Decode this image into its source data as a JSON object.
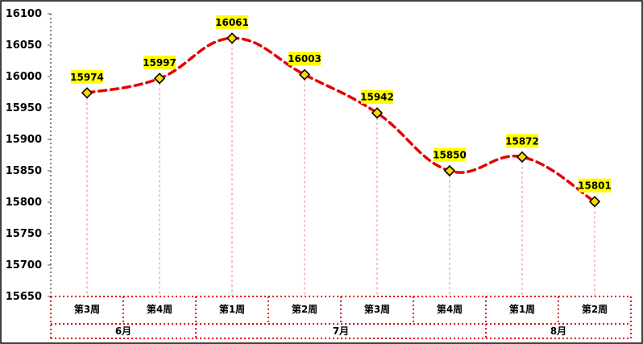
{
  "chart_data": {
    "type": "line",
    "title": "",
    "xlabel": "",
    "ylabel": "",
    "ylim": [
      15650,
      16100
    ],
    "yticks": [
      15650,
      15700,
      15750,
      15800,
      15850,
      15900,
      15950,
      16000,
      16050,
      16100
    ],
    "categories": [
      "第3周",
      "第4周",
      "第1周",
      "第2周",
      "第3周",
      "第4周",
      "第1周",
      "第2周"
    ],
    "groups": [
      {
        "label": "6月",
        "count": 2
      },
      {
        "label": "7月",
        "count": 4
      },
      {
        "label": "8月",
        "count": 2
      }
    ],
    "series": [
      {
        "values": [
          15974,
          15997,
          16061,
          16003,
          15942,
          15850,
          15872,
          15801
        ],
        "color": "#e60000",
        "smooth": true,
        "dashed": true
      }
    ],
    "marker": {
      "shape": "diamond",
      "fill": "#ffd700"
    },
    "data_label_bg": "#ffff00",
    "grid": false,
    "legend": "none"
  }
}
